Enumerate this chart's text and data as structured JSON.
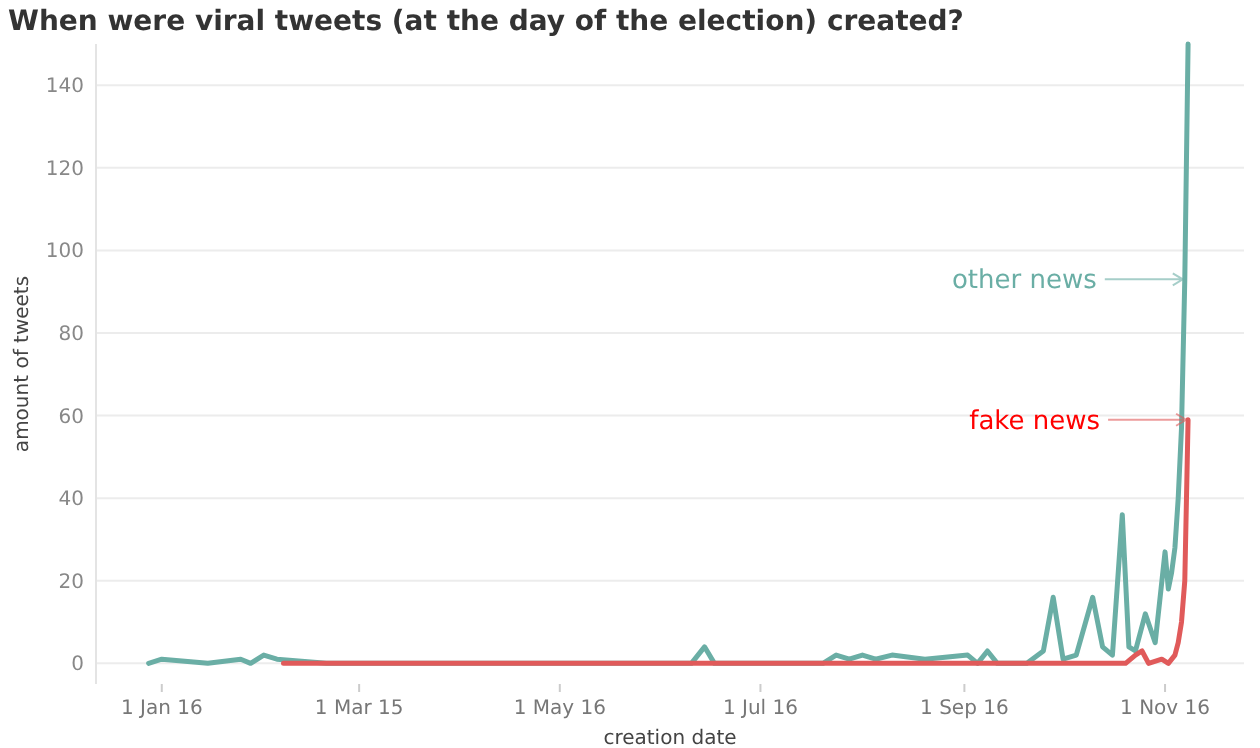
{
  "chart_data": {
    "type": "line",
    "title": "When were viral tweets (at the day of the election) created?",
    "xlabel": "creation date",
    "ylabel": "amount of tweets",
    "xlim": [
      "2015-12-12",
      "2016-11-25"
    ],
    "ylim": [
      -5,
      150
    ],
    "xticks": [
      {
        "value": "2016-01-01",
        "label": "1 Jan 16"
      },
      {
        "value": "2016-03-01",
        "label": "1 Mar 15"
      },
      {
        "value": "2016-05-01",
        "label": "1 May 16"
      },
      {
        "value": "2016-07-01",
        "label": "1 Jul 16"
      },
      {
        "value": "2016-09-01",
        "label": "1 Sep 16"
      },
      {
        "value": "2016-11-01",
        "label": "1 Nov 16"
      }
    ],
    "yticks": [
      0,
      20,
      40,
      60,
      80,
      100,
      120,
      140
    ],
    "grid": "y",
    "legend": "right",
    "marker": "none",
    "line_style": "solid",
    "series": [
      {
        "name": "other news",
        "color": "#6aaea5",
        "x": [
          "2015-12-28",
          "2016-01-01",
          "2016-01-15",
          "2016-01-25",
          "2016-01-28",
          "2016-02-01",
          "2016-02-05",
          "2016-02-20",
          "2016-03-10",
          "2016-04-15",
          "2016-05-05",
          "2016-06-10",
          "2016-06-14",
          "2016-06-17",
          "2016-07-20",
          "2016-07-24",
          "2016-07-28",
          "2016-08-01",
          "2016-08-05",
          "2016-08-10",
          "2016-08-20",
          "2016-09-02",
          "2016-09-05",
          "2016-09-08",
          "2016-09-11",
          "2016-09-20",
          "2016-09-25",
          "2016-09-28",
          "2016-10-01",
          "2016-10-05",
          "2016-10-10",
          "2016-10-13",
          "2016-10-16",
          "2016-10-19",
          "2016-10-21",
          "2016-10-23",
          "2016-10-26",
          "2016-10-29",
          "2016-11-01",
          "2016-11-02",
          "2016-11-03",
          "2016-11-04",
          "2016-11-05",
          "2016-11-06",
          "2016-11-07",
          "2016-11-08"
        ],
        "values": [
          0,
          1,
          0,
          1,
          0,
          2,
          1,
          0,
          0,
          0,
          0,
          0,
          4,
          0,
          0,
          2,
          1,
          2,
          1,
          2,
          1,
          2,
          0,
          3,
          0,
          0,
          3,
          16,
          1,
          2,
          16,
          4,
          2,
          36,
          4,
          3,
          12,
          5,
          27,
          18,
          22,
          28,
          40,
          57,
          93,
          150
        ]
      },
      {
        "name": "fake news",
        "color": "#e05a5a",
        "x": [
          "2016-02-07",
          "2016-04-01",
          "2016-06-01",
          "2016-08-01",
          "2016-10-20",
          "2016-10-23",
          "2016-10-25",
          "2016-10-27",
          "2016-10-31",
          "2016-11-02",
          "2016-11-04",
          "2016-11-05",
          "2016-11-06",
          "2016-11-07",
          "2016-11-08"
        ],
        "values": [
          0,
          0,
          0,
          0,
          0,
          2,
          3,
          0,
          1,
          0,
          2,
          5,
          10,
          20,
          59
        ]
      }
    ]
  }
}
